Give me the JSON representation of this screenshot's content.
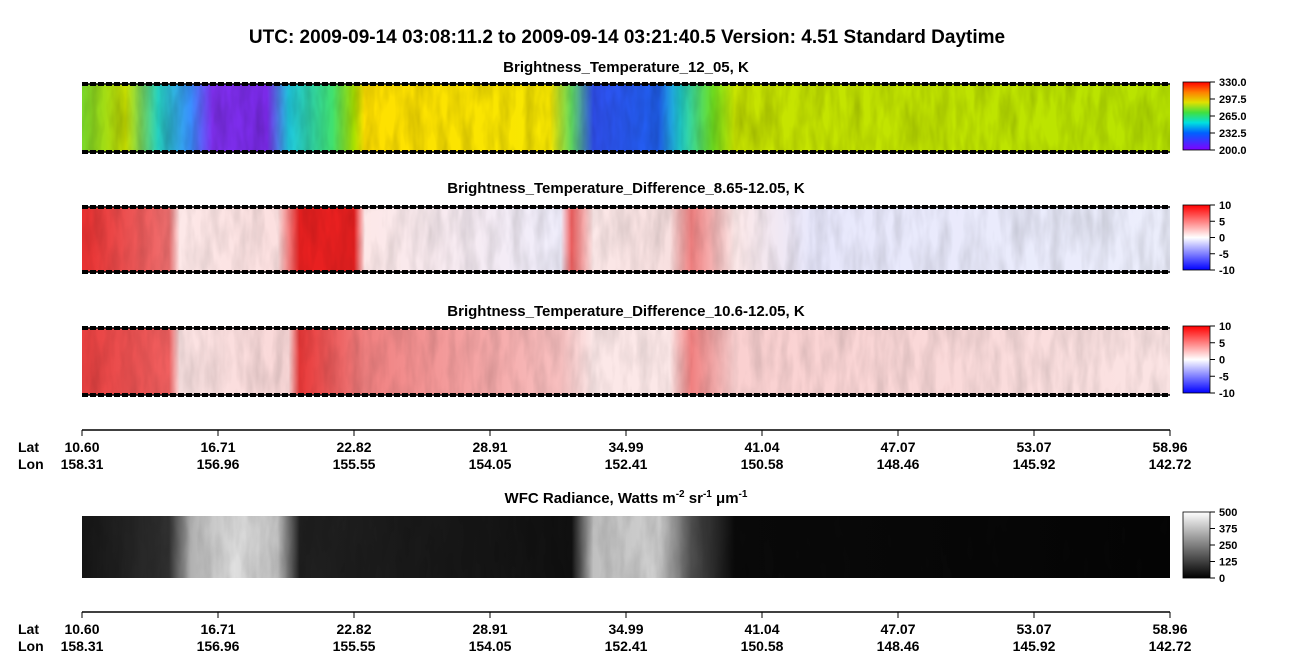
{
  "header": {
    "title": "UTC:  2009-09-14   03:08:11.2  to  2009-09-14   03:21:40.5    Version: 4.51  Standard Daytime"
  },
  "panels": [
    {
      "title": [
        "Brightness_Temperature_12_05, K"
      ],
      "colorbar": [
        "330.0",
        "297.5",
        "265.0",
        "232.5",
        "200.0"
      ]
    },
    {
      "title": [
        "Brightness_Temperature_Difference_8.65-12.05, K"
      ],
      "colorbar": [
        "10",
        "5",
        "0",
        "-5",
        "-10"
      ]
    },
    {
      "title": [
        "Brightness_Temperature_Difference_10.6-12.05, K"
      ],
      "colorbar": [
        "10",
        "5",
        "0",
        "-5",
        "-10"
      ]
    },
    {
      "title": [
        "WFC Radiance, Watts m",
        "-2",
        " sr",
        "-1",
        " μm",
        "-1"
      ],
      "colorbar": [
        "500",
        "375",
        "250",
        "125",
        "0"
      ]
    }
  ],
  "axes": [
    {
      "lat_label": "Lat",
      "lon_label": "Lon",
      "lat": [
        "10.60",
        "16.71",
        "22.82",
        "28.91",
        "34.99",
        "41.04",
        "47.07",
        "53.07",
        "58.96"
      ],
      "lon": [
        "158.31",
        "156.96",
        "155.55",
        "154.05",
        "152.41",
        "150.58",
        "148.46",
        "145.92",
        "142.72"
      ]
    },
    {
      "lat_label": "Lat",
      "lon_label": "Lon",
      "lat": [
        "10.60",
        "16.71",
        "22.82",
        "28.91",
        "34.99",
        "41.04",
        "47.07",
        "53.07",
        "58.96"
      ],
      "lon": [
        "158.31",
        "156.96",
        "155.55",
        "154.05",
        "152.41",
        "150.58",
        "148.46",
        "145.92",
        "142.72"
      ]
    }
  ]
}
